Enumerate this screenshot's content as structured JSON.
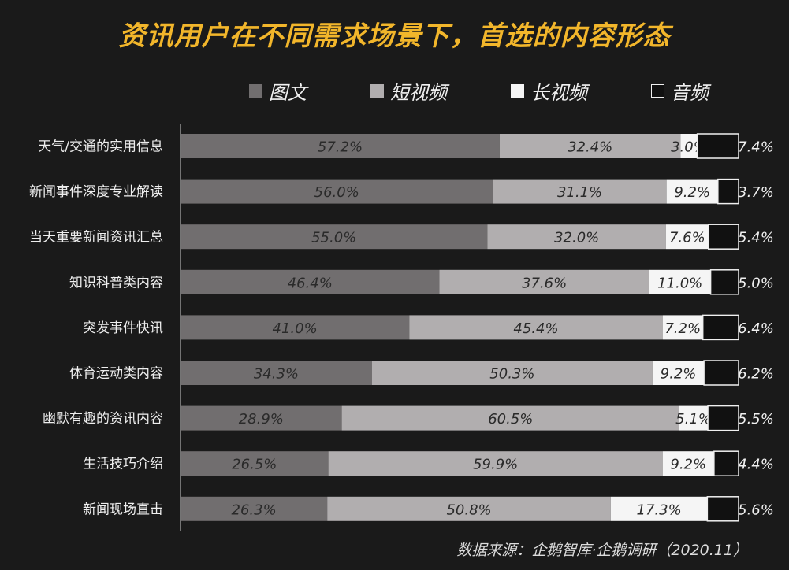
{
  "title": "资讯用户在不同需求场景下，首选的内容形态",
  "source": "数据来源：企鹅智库·企鹅调研（2020.11）",
  "legend_position": "top",
  "colors": {
    "background": "#1a1a1a",
    "title": "#f2b62b",
    "图文": "#716e6f",
    "短视频": "#b1aeaf",
    "长视频": "#f5f5f5",
    "音频": "#111111"
  },
  "chart_data": {
    "type": "bar",
    "orientation": "horizontal",
    "stacked": true,
    "unit": "%",
    "xlim": [
      0,
      100
    ],
    "grid": false,
    "categories": [
      "天气/交通的实用信息",
      "新闻事件深度专业解读",
      "当天重要新闻资讯汇总",
      "知识科普类内容",
      "突发事件快讯",
      "体育运动类内容",
      "幽默有趣的资讯内容",
      "生活技巧介绍",
      "新闻现场直击"
    ],
    "series": [
      {
        "name": "图文",
        "values": [
          57.2,
          56.0,
          55.0,
          46.4,
          41.0,
          34.3,
          28.9,
          26.5,
          26.3
        ]
      },
      {
        "name": "短视频",
        "values": [
          32.4,
          31.1,
          32.0,
          37.6,
          45.4,
          50.3,
          60.5,
          59.9,
          50.8
        ]
      },
      {
        "name": "长视频",
        "values": [
          3.0,
          9.2,
          7.6,
          11.0,
          7.2,
          9.2,
          5.1,
          9.2,
          17.3
        ]
      },
      {
        "name": "音频",
        "values": [
          7.4,
          3.7,
          5.4,
          5.0,
          6.4,
          6.2,
          5.5,
          4.4,
          5.6
        ]
      }
    ],
    "labels": [
      [
        "57.2%",
        "32.4%",
        "3.0%",
        "7.4%"
      ],
      [
        "56.0%",
        "31.1%",
        "9.2%",
        "3.7%"
      ],
      [
        "55.0%",
        "32.0%",
        "7.6%",
        "5.4%"
      ],
      [
        "46.4%",
        "37.6%",
        "11.0%",
        "5.0%"
      ],
      [
        "41.0%",
        "45.4%",
        "7.2%",
        "6.4%"
      ],
      [
        "34.3%",
        "50.3%",
        "9.2%",
        "6.2%"
      ],
      [
        "28.9%",
        "60.5%",
        "5.1%",
        "5.5%"
      ],
      [
        "26.5%",
        "59.9%",
        "9.2%",
        "4.4%"
      ],
      [
        "26.3%",
        "50.8%",
        "17.3%",
        "5.6%"
      ]
    ]
  }
}
